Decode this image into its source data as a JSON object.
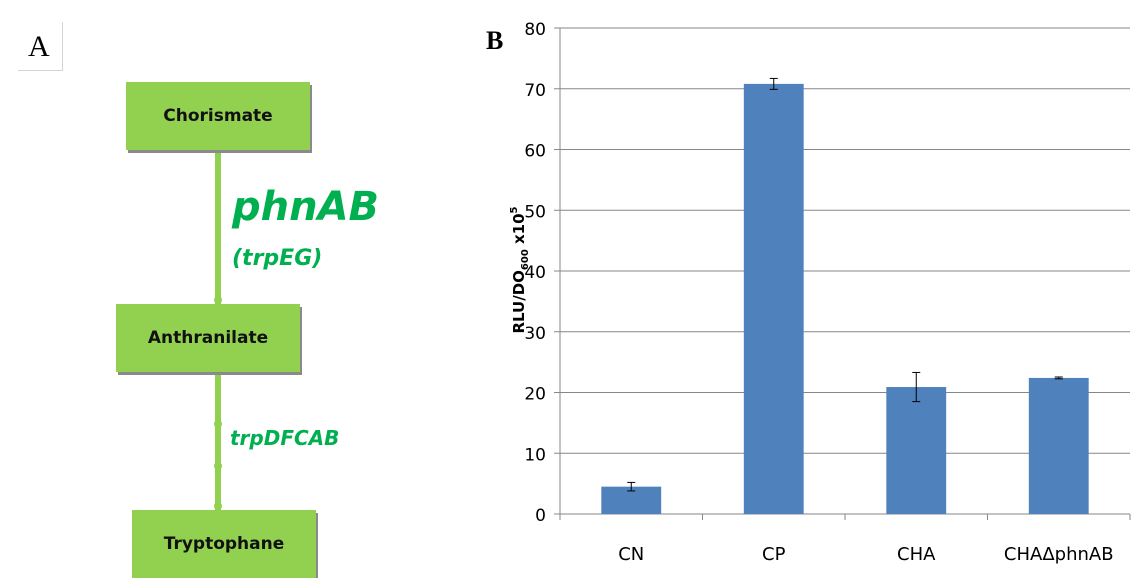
{
  "panel_a": {
    "label": "A",
    "nodes": [
      "Chorismate",
      "Anthranilate",
      "Tryptophane"
    ],
    "genes": {
      "step1_main": "phnAB",
      "step1_alt": "(trpEG)",
      "step2": "trpDFCAB"
    },
    "colors": {
      "box": "#92d050",
      "gene_text": "#00b050"
    }
  },
  "panel_b": {
    "label": "B"
  },
  "chart_data": {
    "type": "bar",
    "categories": [
      "CN",
      "CP",
      "CHA",
      "CHAΔphnAB"
    ],
    "values": [
      4.5,
      70.8,
      20.9,
      22.4
    ],
    "errors": [
      0.7,
      0.9,
      2.4,
      0.15
    ],
    "title": "",
    "xlabel": "",
    "ylabel": "RLU/DO",
    "ylabel_sub": "600",
    "ylabel_suffix": " x10",
    "ylabel_sup": "5",
    "ylim": [
      0,
      80
    ],
    "yticks": [
      0,
      10,
      20,
      30,
      40,
      50,
      60,
      70,
      80
    ],
    "grid": true,
    "bar_color": "#4f81bd"
  }
}
